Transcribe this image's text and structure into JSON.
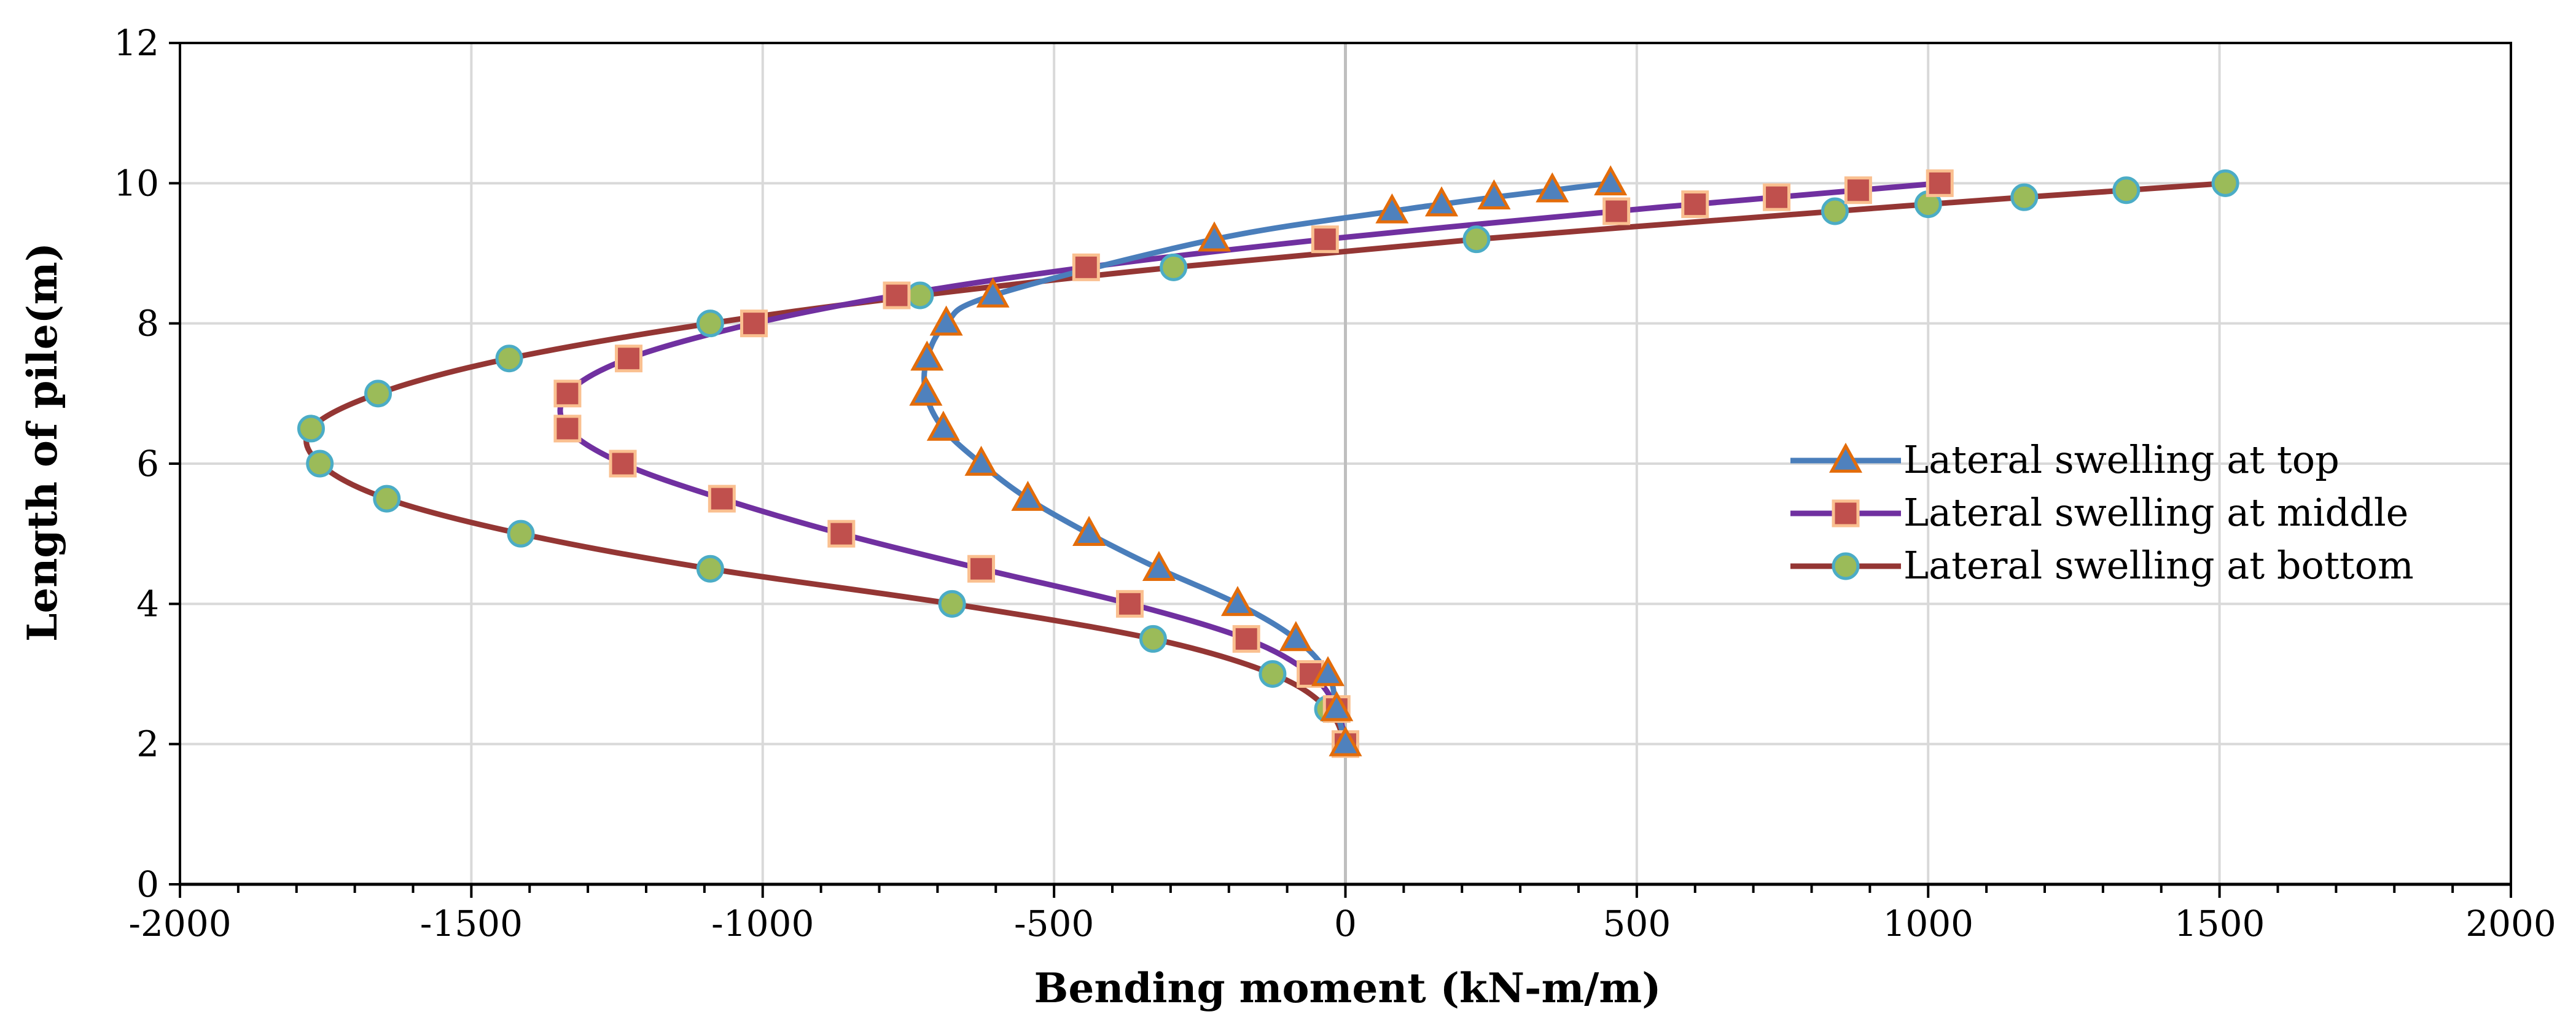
{
  "chart_data": {
    "type": "line",
    "title": "",
    "xlabel": "Bending moment (kN-m/m)",
    "ylabel": "Length of pile(m)",
    "xlim": [
      -2000,
      2000
    ],
    "ylim": [
      0,
      12
    ],
    "xticks": [
      -2000,
      -1500,
      -1000,
      -500,
      0,
      500,
      1000,
      1500,
      2000
    ],
    "yticks": [
      0,
      2,
      4,
      6,
      8,
      10,
      12
    ],
    "grid": true,
    "legend_position": "right",
    "series": [
      {
        "name": "Lateral swelling at top",
        "color": "#4a7ebb",
        "marker": "triangle",
        "marker_fill": "#4f81bd",
        "marker_stroke": "#e36c0a",
        "points": [
          [
            0,
            2
          ],
          [
            -15,
            2.5
          ],
          [
            -30,
            3
          ],
          [
            -85,
            3.5
          ],
          [
            -185,
            4
          ],
          [
            -320,
            4.5
          ],
          [
            -440,
            5
          ],
          [
            -545,
            5.5
          ],
          [
            -625,
            6
          ],
          [
            -690,
            6.5
          ],
          [
            -720,
            7
          ],
          [
            -718,
            7.5
          ],
          [
            -685,
            8
          ],
          [
            -605,
            8.4
          ],
          [
            -225,
            9.2
          ],
          [
            80,
            9.6
          ],
          [
            165,
            9.7
          ],
          [
            255,
            9.8
          ],
          [
            355,
            9.9
          ],
          [
            455,
            10
          ]
        ]
      },
      {
        "name": "Lateral swelling at middle",
        "color": "#7030a0",
        "marker": "square",
        "marker_fill": "#c0504d",
        "marker_stroke": "#fac090",
        "points": [
          [
            0,
            2
          ],
          [
            -15,
            2.5
          ],
          [
            -60,
            3
          ],
          [
            -170,
            3.5
          ],
          [
            -370,
            4
          ],
          [
            -625,
            4.5
          ],
          [
            -865,
            5
          ],
          [
            -1070,
            5.5
          ],
          [
            -1240,
            6
          ],
          [
            -1335,
            6.5
          ],
          [
            -1335,
            7
          ],
          [
            -1230,
            7.5
          ],
          [
            -1015,
            8
          ],
          [
            -770,
            8.4
          ],
          [
            -445,
            8.8
          ],
          [
            -35,
            9.2
          ],
          [
            465,
            9.6
          ],
          [
            600,
            9.7
          ],
          [
            740,
            9.8
          ],
          [
            880,
            9.9
          ],
          [
            1020,
            10
          ]
        ]
      },
      {
        "name": "Lateral swelling at bottom",
        "color": "#943634",
        "marker": "circle",
        "marker_fill": "#9bbb59",
        "marker_stroke": "#4bacc6",
        "points": [
          [
            0,
            2
          ],
          [
            -30,
            2.5
          ],
          [
            -125,
            3
          ],
          [
            -330,
            3.5
          ],
          [
            -675,
            4
          ],
          [
            -1090,
            4.5
          ],
          [
            -1415,
            5
          ],
          [
            -1645,
            5.5
          ],
          [
            -1760,
            6
          ],
          [
            -1775,
            6.5
          ],
          [
            -1660,
            7
          ],
          [
            -1435,
            7.5
          ],
          [
            -1090,
            8
          ],
          [
            -730,
            8.4
          ],
          [
            -295,
            8.8
          ],
          [
            225,
            9.2
          ],
          [
            840,
            9.6
          ],
          [
            1000,
            9.7
          ],
          [
            1165,
            9.8
          ],
          [
            1340,
            9.9
          ],
          [
            1510,
            10
          ]
        ]
      }
    ]
  }
}
